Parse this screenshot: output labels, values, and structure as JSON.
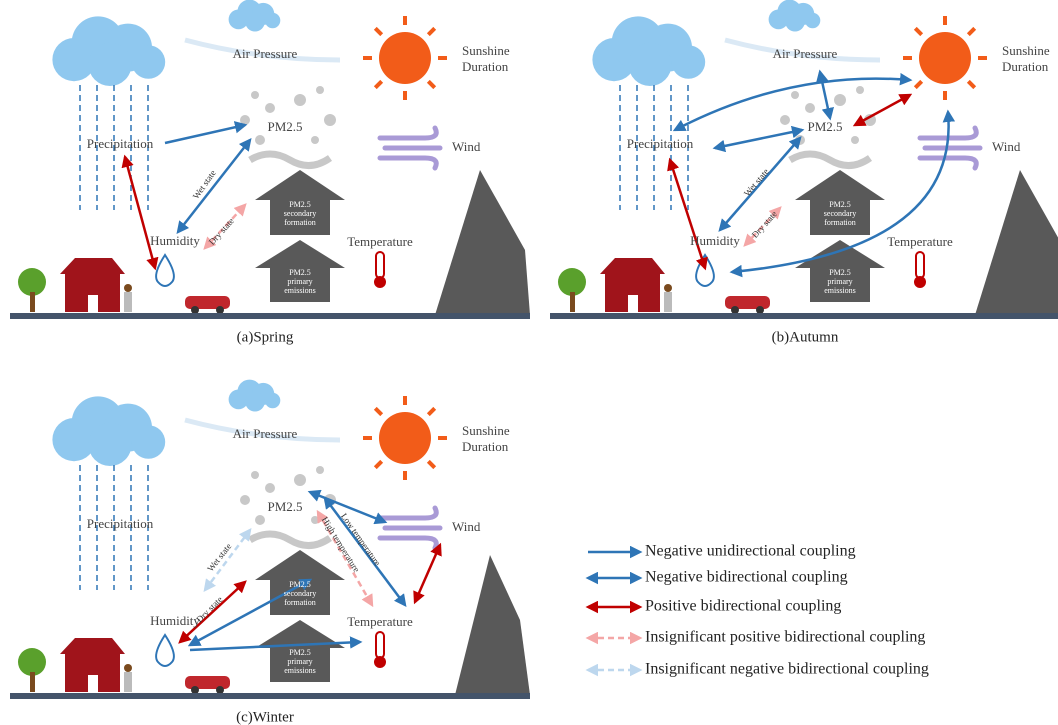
{
  "panels": [
    {
      "caption": "(a)Spring",
      "air_pressure": "Air Pressure",
      "sunshine": [
        "Sunshine",
        "Duration"
      ],
      "pm25": "PM2.5",
      "precipitation": "Precipitation",
      "wind": "Wind",
      "humidity": "Humidity",
      "temperature": "Temperature",
      "secondary": [
        "PM2.5",
        "secondary",
        "formation"
      ],
      "primary": [
        "PM2.5",
        "primary",
        "emissions"
      ],
      "edge_labels": [
        "Wet state",
        "Dry state"
      ]
    },
    {
      "caption": "(b)Autumn",
      "air_pressure": "Air Pressure",
      "sunshine": [
        "Sunshine",
        "Duration"
      ],
      "pm25": "PM2.5",
      "precipitation": "Precipitation",
      "wind": "Wind",
      "humidity": "Humidity",
      "temperature": "Temperature",
      "secondary": [
        "PM2.5",
        "secondary",
        "formation"
      ],
      "primary": [
        "PM2.5",
        "primary",
        "emissions"
      ],
      "edge_labels": [
        "Wet state",
        "Dry state"
      ]
    },
    {
      "caption": "(c)Winter",
      "air_pressure": "Air Pressure",
      "sunshine": [
        "Sunshine",
        "Duration"
      ],
      "pm25": "PM2.5",
      "precipitation": "Precipitation",
      "wind": "Wind",
      "humidity": "Humidity",
      "temperature": "Temperature",
      "secondary": [
        "PM2.5",
        "secondary",
        "formation"
      ],
      "primary": [
        "PM2.5",
        "primary",
        "emissions"
      ],
      "edge_labels": [
        "Wet state",
        "Dry state",
        "Low temperature",
        "High temperature"
      ]
    }
  ],
  "legend": [
    "Negative unidirectional coupling",
    "Negative bidirectional coupling",
    "Positive bidirectional coupling",
    "Insignificant positive bidirectional coupling",
    "Insignificant negative bidirectional coupling"
  ]
}
